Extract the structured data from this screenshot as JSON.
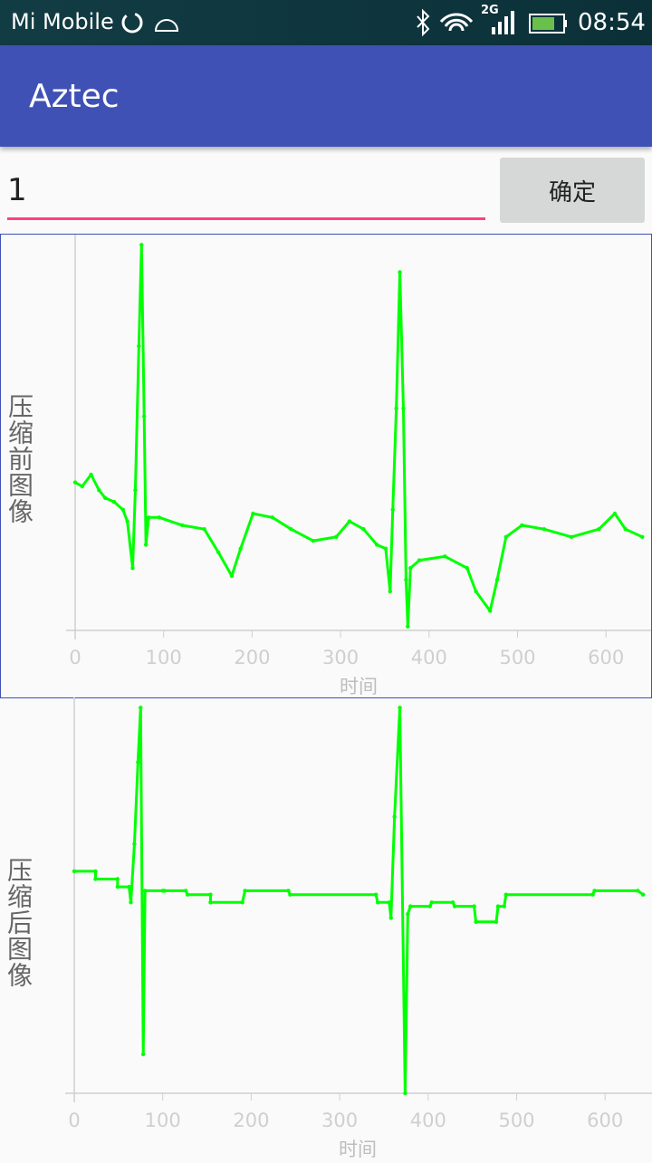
{
  "status_bar": {
    "carrier": "Mi Mobile",
    "network": "2G",
    "time": "08:54"
  },
  "app_bar": {
    "title": "Aztec"
  },
  "input": {
    "value": "1"
  },
  "button": {
    "label": "确定"
  },
  "chart_data": [
    {
      "type": "line",
      "ylabel": "压缩前图像",
      "xlabel": "时间",
      "xlim": [
        0,
        653
      ],
      "ylim": [
        0,
        100
      ],
      "xticks": [
        0,
        100,
        200,
        300,
        400,
        500,
        600
      ],
      "x": [
        0,
        8,
        18,
        27,
        34,
        44,
        54,
        59,
        65,
        68,
        72,
        75,
        78,
        80,
        83,
        95,
        121,
        146,
        162,
        177,
        187,
        201,
        223,
        244,
        269,
        295,
        310,
        326,
        341,
        351,
        356,
        359,
        363,
        367,
        371,
        374,
        376,
        379,
        389,
        418,
        443,
        453,
        469,
        477,
        487,
        505,
        530,
        561,
        592,
        610,
        622,
        641
      ],
      "series": [
        {
          "color": "#00ff00",
          "values": [
            38,
            37,
            40,
            36,
            34,
            33,
            31,
            28,
            16,
            36,
            73,
            99,
            55,
            22,
            29,
            29,
            27,
            26,
            20,
            14,
            21,
            30,
            29,
            26,
            23,
            24,
            28,
            26,
            22,
            21,
            10,
            31,
            57,
            92,
            57,
            13,
            1,
            16,
            18,
            19,
            16,
            10,
            5,
            13,
            24,
            27,
            26,
            24,
            26,
            30,
            26,
            24
          ]
        }
      ]
    },
    {
      "type": "line",
      "ylabel": "压缩后图像",
      "xlabel": "时间",
      "xlim": [
        0,
        653
      ],
      "ylim": [
        0,
        100
      ],
      "xticks": [
        0,
        100,
        200,
        300,
        400,
        500,
        600
      ],
      "x": [
        0,
        24,
        24,
        49,
        49,
        62,
        64,
        68,
        72,
        75,
        78,
        80,
        100,
        102,
        126,
        128,
        154,
        154,
        190,
        193,
        242,
        244,
        341,
        343,
        356,
        358,
        362,
        368,
        374,
        377,
        380,
        402,
        404,
        428,
        430,
        452,
        454,
        477,
        479,
        486,
        488,
        586,
        588,
        637,
        643
      ],
      "series": [
        {
          "color": "#00ff00",
          "values": [
            57,
            57,
            55,
            55,
            53,
            53,
            49,
            64,
            85,
            99,
            10,
            52,
            52,
            52,
            52,
            51,
            51,
            49,
            49,
            52,
            52,
            51,
            51,
            49,
            49,
            45,
            71,
            99,
            0,
            46,
            48,
            48,
            49,
            49,
            48,
            48,
            44,
            44,
            48,
            48,
            51,
            51,
            52,
            52,
            51
          ]
        }
      ]
    }
  ]
}
